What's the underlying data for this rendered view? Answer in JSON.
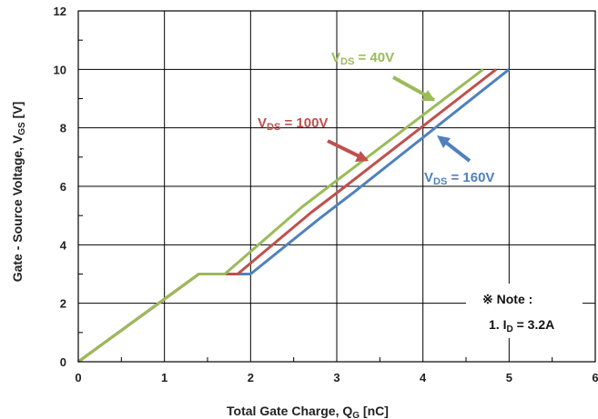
{
  "chart_data": {
    "type": "line",
    "xlabel_main": "Total Gate Charge, Q",
    "xlabel_sub": "G",
    "xlabel_unit": " [nC]",
    "ylabel_main": "Gate - Source Voltage, V",
    "ylabel_sub": "GS",
    "ylabel_unit": " [V]",
    "xlim": [
      0,
      6
    ],
    "ylim": [
      0,
      12
    ],
    "x_ticks": [
      "0",
      "1",
      "2",
      "3",
      "4",
      "5",
      "6"
    ],
    "y_ticks": [
      "0",
      "2",
      "4",
      "6",
      "8",
      "10",
      "12"
    ],
    "grid": true,
    "series": [
      {
        "name": "VDS = 40V",
        "label_main": "V",
        "label_sub": "DS",
        "label_rest": " = 40V",
        "color": "#9bbb59",
        "x": [
          0,
          1.4,
          1.7,
          2.6,
          3.0,
          4.7
        ],
        "y": [
          0,
          3.0,
          3.0,
          5.3,
          6.2,
          10.0
        ]
      },
      {
        "name": "VDS = 100V",
        "label_main": "V",
        "label_sub": "DS",
        "label_rest": " = 100V",
        "color": "#c0504d",
        "x": [
          0,
          1.4,
          1.85,
          2.7,
          3.1,
          4.85
        ],
        "y": [
          0,
          3.0,
          3.0,
          5.1,
          6.0,
          10.0
        ]
      },
      {
        "name": "VDS = 160V",
        "label_main": "V",
        "label_sub": "DS",
        "label_rest": " = 160V",
        "color": "#4f81bd",
        "x": [
          0,
          1.4,
          2.0,
          2.8,
          3.2,
          5.0
        ],
        "y": [
          0,
          3.0,
          3.0,
          4.9,
          5.8,
          10.0
        ]
      }
    ],
    "note_title": "※ Note :",
    "note_line_main": "1. I",
    "note_line_sub": "D",
    "note_line_rest": " = 3.2A"
  }
}
